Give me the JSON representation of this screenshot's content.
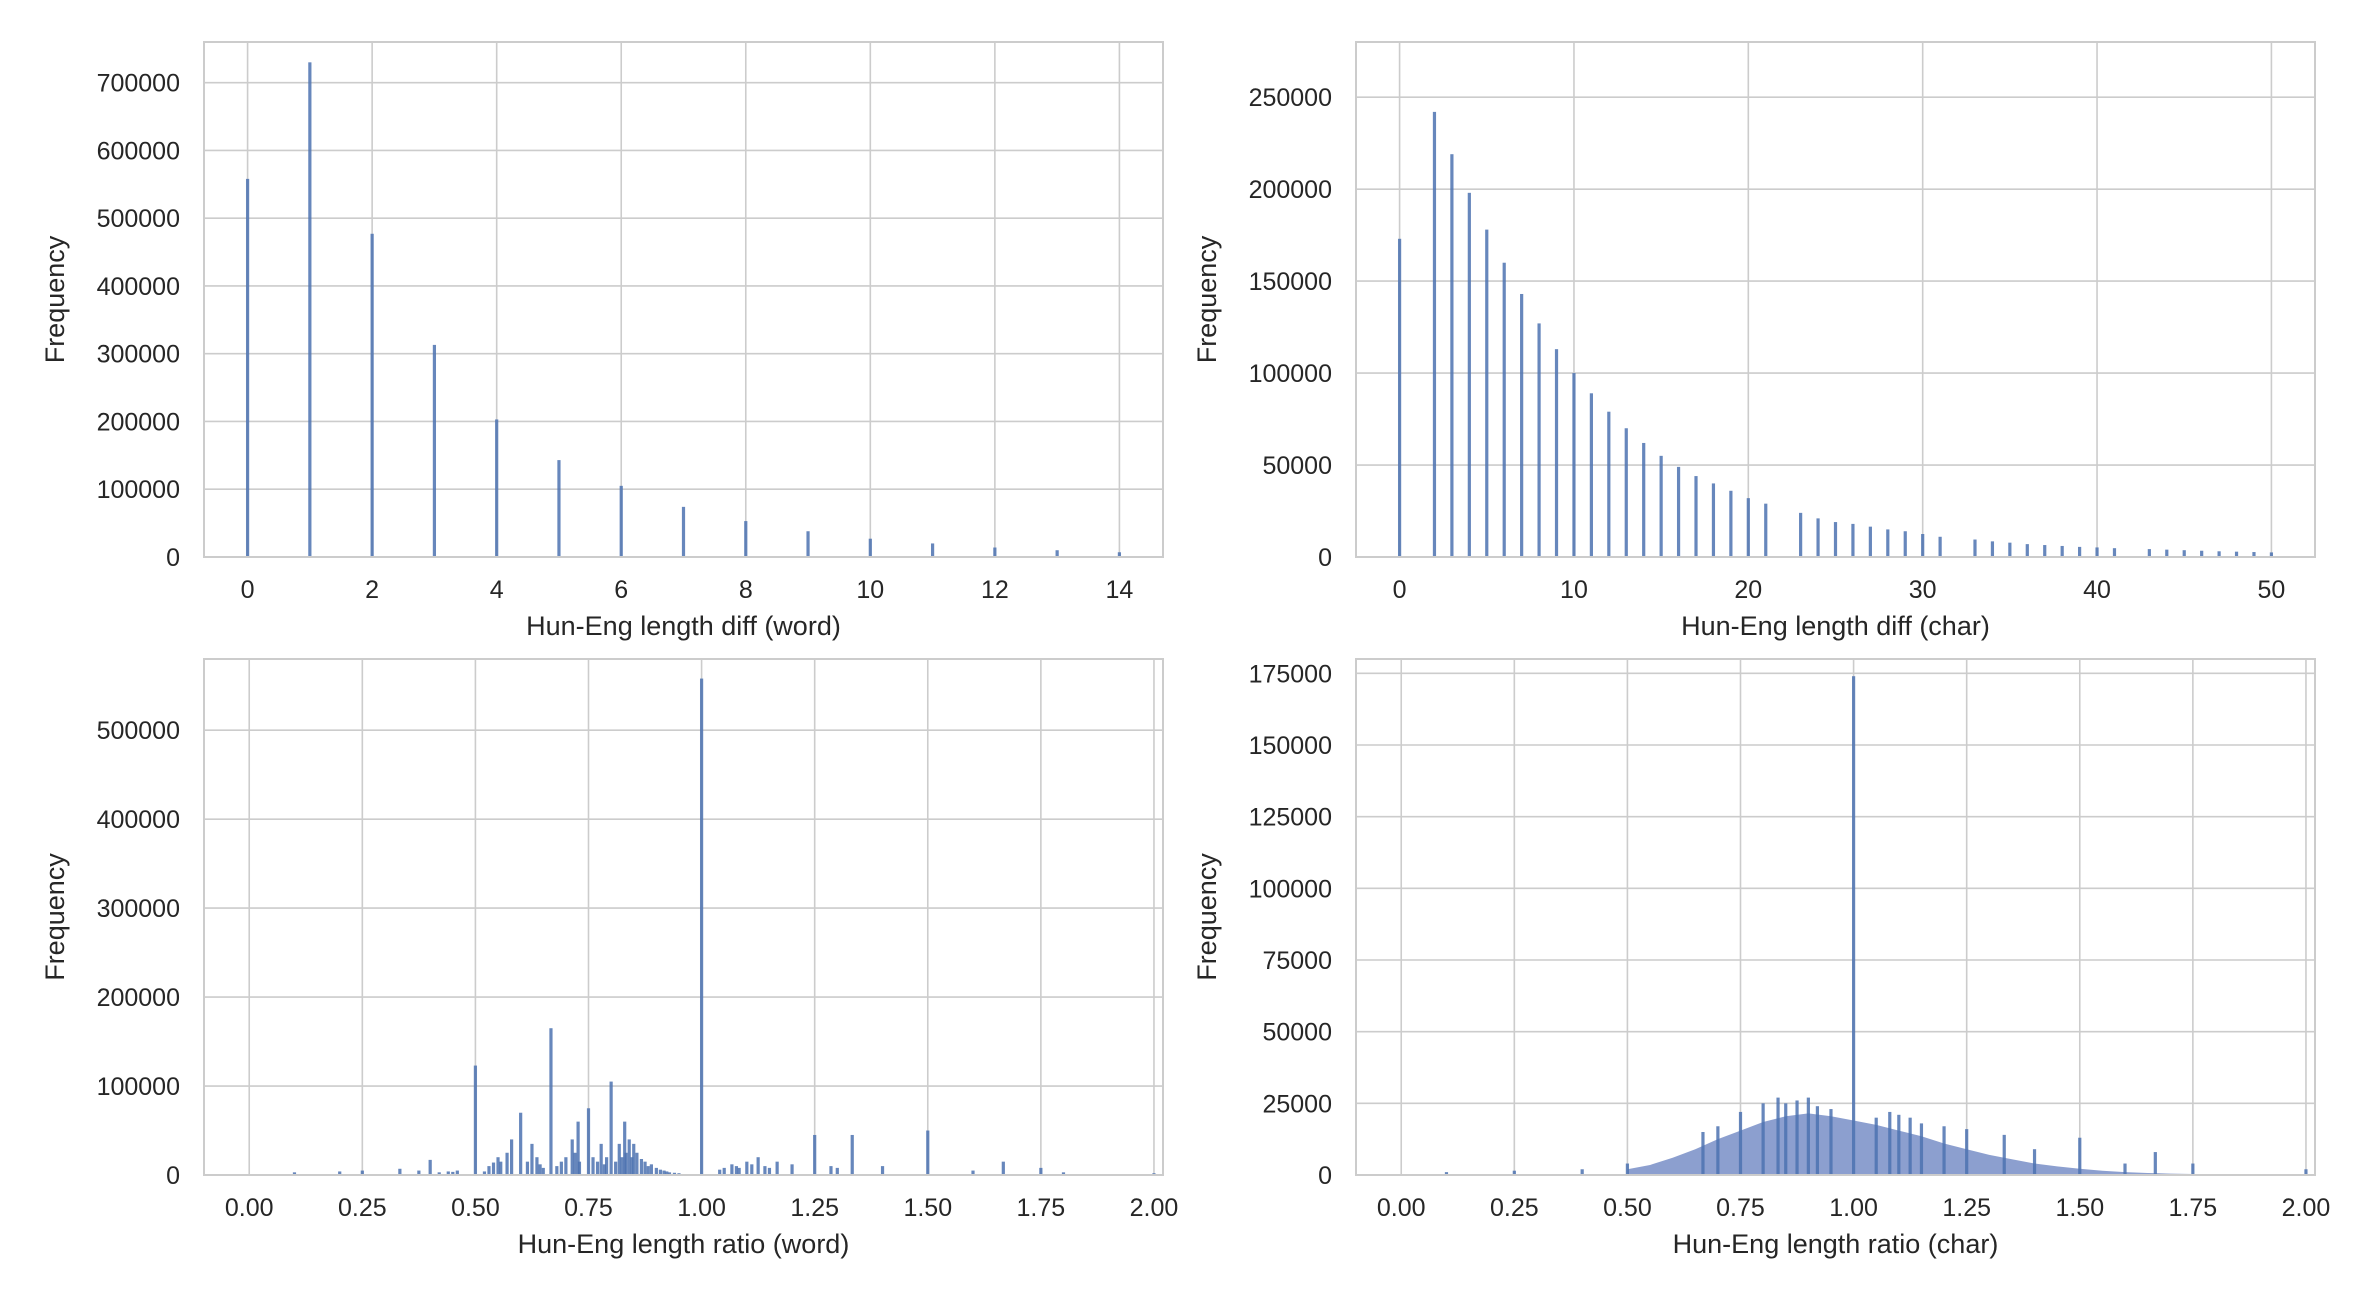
{
  "colors": {
    "bar": "#4c72b0",
    "bar_fill": "#8c9fcf",
    "grid": "#cccccc"
  },
  "chart_data": [
    {
      "type": "bar",
      "xlabel": "Hun-Eng length diff (word)",
      "ylabel": "Frequency",
      "xlim": [
        -0.7,
        14.7
      ],
      "ylim": [
        0,
        760000
      ],
      "xticks": [
        0,
        2,
        4,
        6,
        8,
        10,
        12,
        14
      ],
      "yticks": [
        0,
        100000,
        200000,
        300000,
        400000,
        500000,
        600000,
        700000
      ],
      "grid": true,
      "series": [
        {
          "x": [
            0,
            1,
            2,
            3,
            4,
            5,
            6,
            7,
            8,
            9,
            10,
            11,
            12,
            13,
            14
          ],
          "values": [
            558000,
            730000,
            477000,
            313000,
            203000,
            143000,
            105000,
            74000,
            53000,
            38000,
            27000,
            20000,
            14000,
            10000,
            7000
          ]
        }
      ]
    },
    {
      "type": "bar",
      "xlabel": "Hun-Eng length diff (char)",
      "ylabel": "Frequency",
      "xlim": [
        -2.5,
        52.5
      ],
      "ylim": [
        0,
        280000
      ],
      "xticks": [
        0,
        10,
        20,
        30,
        40,
        50
      ],
      "yticks": [
        0,
        50000,
        100000,
        150000,
        200000,
        250000
      ],
      "grid": true,
      "series": [
        {
          "x": [
            0,
            2,
            3,
            4,
            5,
            6,
            7,
            8,
            9,
            10,
            11,
            12,
            13,
            14,
            15,
            16,
            17,
            18,
            19,
            20,
            21,
            23,
            24,
            25,
            26,
            27,
            28,
            29,
            30,
            31,
            33,
            34,
            35,
            36,
            37,
            38,
            39,
            40,
            41,
            43,
            44,
            45,
            46,
            47,
            48,
            49,
            50
          ],
          "values": [
            173000,
            242000,
            219000,
            198000,
            178000,
            160000,
            143000,
            127000,
            113000,
            100000,
            89000,
            79000,
            70000,
            62000,
            55000,
            49000,
            44000,
            40000,
            36000,
            32000,
            29000,
            24000,
            21000,
            19000,
            18000,
            16500,
            15000,
            14000,
            12500,
            11000,
            9500,
            8500,
            7800,
            7000,
            6500,
            6000,
            5500,
            5200,
            4800,
            4300,
            4000,
            3700,
            3400,
            3100,
            2900,
            2700,
            2500
          ]
        }
      ]
    },
    {
      "type": "bar",
      "xlabel": "Hun-Eng length ratio (word)",
      "ylabel": "Frequency",
      "xlim": [
        -0.1,
        2.02
      ],
      "ylim": [
        0,
        580000
      ],
      "xticks": [
        0.0,
        0.25,
        0.5,
        0.75,
        1.0,
        1.25,
        1.5,
        1.75,
        2.0
      ],
      "xtick_labels": [
        "0.00",
        "0.25",
        "0.50",
        "0.75",
        "1.00",
        "1.25",
        "1.50",
        "1.75",
        "2.00"
      ],
      "yticks": [
        0,
        100000,
        200000,
        300000,
        400000,
        500000
      ],
      "grid": true,
      "series": [
        {
          "x": [
            0.1,
            0.2,
            0.25,
            0.333,
            0.375,
            0.4,
            0.42,
            0.44,
            0.45,
            0.46,
            0.5,
            0.52,
            0.53,
            0.54,
            0.55,
            0.556,
            0.57,
            0.58,
            0.6,
            0.615,
            0.625,
            0.636,
            0.643,
            0.65,
            0.667,
            0.68,
            0.69,
            0.7,
            0.714,
            0.72,
            0.727,
            0.73,
            0.75,
            0.76,
            0.77,
            0.778,
            0.785,
            0.79,
            0.8,
            0.81,
            0.818,
            0.824,
            0.83,
            0.833,
            0.84,
            0.846,
            0.85,
            0.857,
            0.867,
            0.875,
            0.882,
            0.889,
            0.9,
            0.909,
            0.917,
            0.923,
            0.929,
            0.94,
            0.95,
            1.0,
            1.04,
            1.05,
            1.067,
            1.077,
            1.083,
            1.1,
            1.111,
            1.125,
            1.14,
            1.15,
            1.167,
            1.2,
            1.25,
            1.286,
            1.3,
            1.333,
            1.4,
            1.5,
            1.6,
            1.667,
            1.75,
            1.8,
            2.0
          ],
          "values": [
            3000,
            4000,
            5000,
            7000,
            5000,
            17000,
            3000,
            4000,
            3500,
            5000,
            123000,
            4000,
            10000,
            14000,
            20000,
            15000,
            25000,
            40000,
            70000,
            15000,
            35000,
            20000,
            12000,
            8000,
            165000,
            10000,
            15000,
            20000,
            40000,
            25000,
            60000,
            15000,
            75000,
            20000,
            15000,
            35000,
            12000,
            20000,
            105000,
            15000,
            35000,
            20000,
            60000,
            25000,
            40000,
            20000,
            35000,
            25000,
            18000,
            15000,
            10000,
            12000,
            8000,
            6000,
            5000,
            4000,
            3000,
            2500,
            2000,
            558000,
            6000,
            8000,
            12000,
            10000,
            8000,
            15000,
            12000,
            20000,
            10000,
            8000,
            15000,
            12000,
            45000,
            10000,
            8000,
            45000,
            10000,
            50000,
            5000,
            15000,
            8000,
            3000,
            2000
          ]
        }
      ]
    },
    {
      "type": "bar",
      "xlabel": "Hun-Eng length ratio (char)",
      "ylabel": "Frequency",
      "xlim": [
        -0.1,
        2.02
      ],
      "ylim": [
        0,
        180000
      ],
      "xticks": [
        0.0,
        0.25,
        0.5,
        0.75,
        1.0,
        1.25,
        1.5,
        1.75,
        2.0
      ],
      "xtick_labels": [
        "0.00",
        "0.25",
        "0.50",
        "0.75",
        "1.00",
        "1.25",
        "1.50",
        "1.75",
        "2.00"
      ],
      "yticks": [
        0,
        25000,
        50000,
        75000,
        100000,
        125000,
        150000,
        175000
      ],
      "grid": true,
      "envelope": {
        "x": [
          0.5,
          0.55,
          0.6,
          0.65,
          0.7,
          0.75,
          0.8,
          0.85,
          0.9,
          0.95,
          1.0,
          1.05,
          1.1,
          1.15,
          1.2,
          1.25,
          1.3,
          1.35,
          1.4,
          1.45,
          1.5,
          1.55,
          1.6,
          1.65,
          1.7,
          1.75,
          1.8
        ],
        "values": [
          2000,
          3500,
          6000,
          9000,
          12500,
          15500,
          18500,
          20500,
          21500,
          20500,
          19000,
          17500,
          15500,
          13500,
          11000,
          9000,
          7000,
          5500,
          4000,
          3000,
          2200,
          1500,
          1000,
          700,
          500,
          350,
          250
        ]
      },
      "series": [
        {
          "x": [
            0.1,
            0.25,
            0.4,
            0.5,
            0.667,
            0.7,
            0.75,
            0.8,
            0.833,
            0.85,
            0.875,
            0.9,
            0.92,
            0.95,
            1.0,
            1.05,
            1.08,
            1.1,
            1.125,
            1.15,
            1.2,
            1.25,
            1.333,
            1.4,
            1.5,
            1.6,
            1.667,
            1.75,
            2.0
          ],
          "values": [
            1000,
            1500,
            2000,
            4000,
            15000,
            17000,
            22000,
            25000,
            27000,
            25000,
            26000,
            27000,
            24000,
            23000,
            174000,
            20000,
            22000,
            21000,
            20000,
            18000,
            17000,
            16000,
            14000,
            9000,
            13000,
            4000,
            8000,
            4000,
            2000
          ]
        }
      ]
    }
  ]
}
